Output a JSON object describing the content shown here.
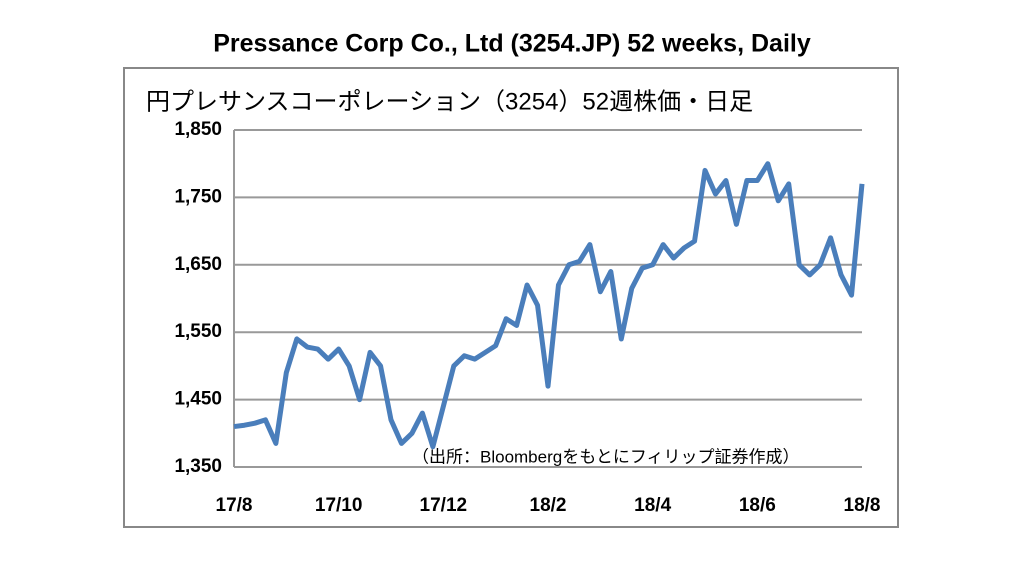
{
  "chart_data": {
    "type": "line",
    "title": "Pressance Corp Co., Ltd (3254.JP) 52 weeks, Daily",
    "subtitle": "円プレサンスコーポレーション（3254）52週株価・日足",
    "annotation": "（出所：Bloombergをもとにフィリップ証券作成）",
    "categories": [
      "17/8",
      null,
      null,
      null,
      null,
      null,
      null,
      null,
      null,
      null,
      "17/10",
      null,
      null,
      null,
      null,
      null,
      null,
      null,
      null,
      null,
      "17/12",
      null,
      null,
      null,
      null,
      null,
      null,
      null,
      null,
      null,
      "18/2",
      null,
      null,
      null,
      null,
      null,
      null,
      null,
      null,
      null,
      "18/4",
      null,
      null,
      null,
      null,
      null,
      null,
      null,
      null,
      null,
      "18/6",
      null,
      null,
      null,
      null,
      null,
      null,
      null,
      null,
      null,
      "18/8"
    ],
    "series": [
      {
        "color": "#4a7ebb",
        "values": [
          1410,
          1412,
          1415,
          1420,
          1385,
          1490,
          1540,
          1528,
          1525,
          1510,
          1525,
          1500,
          1450,
          1520,
          1500,
          1420,
          1385,
          1400,
          1430,
          1380,
          1440,
          1500,
          1515,
          1510,
          1520,
          1530,
          1570,
          1560,
          1620,
          1590,
          1470,
          1620,
          1650,
          1655,
          1680,
          1610,
          1640,
          1540,
          1615,
          1645,
          1650,
          1680,
          1660,
          1675,
          1685,
          1790,
          1755,
          1775,
          1710,
          1775,
          1775,
          1800,
          1745,
          1770,
          1650,
          1635,
          1650,
          1690,
          1635,
          1605,
          1770
        ]
      }
    ],
    "ylim": [
      1350,
      1850
    ],
    "yticks": [
      {
        "value": 1350,
        "label": "1,350"
      },
      {
        "value": 1450,
        "label": "1,450"
      },
      {
        "value": 1550,
        "label": "1,550"
      },
      {
        "value": 1650,
        "label": "1,650"
      },
      {
        "value": 1750,
        "label": "1,750"
      },
      {
        "value": 1850,
        "label": "1,850"
      }
    ],
    "grid": true
  }
}
